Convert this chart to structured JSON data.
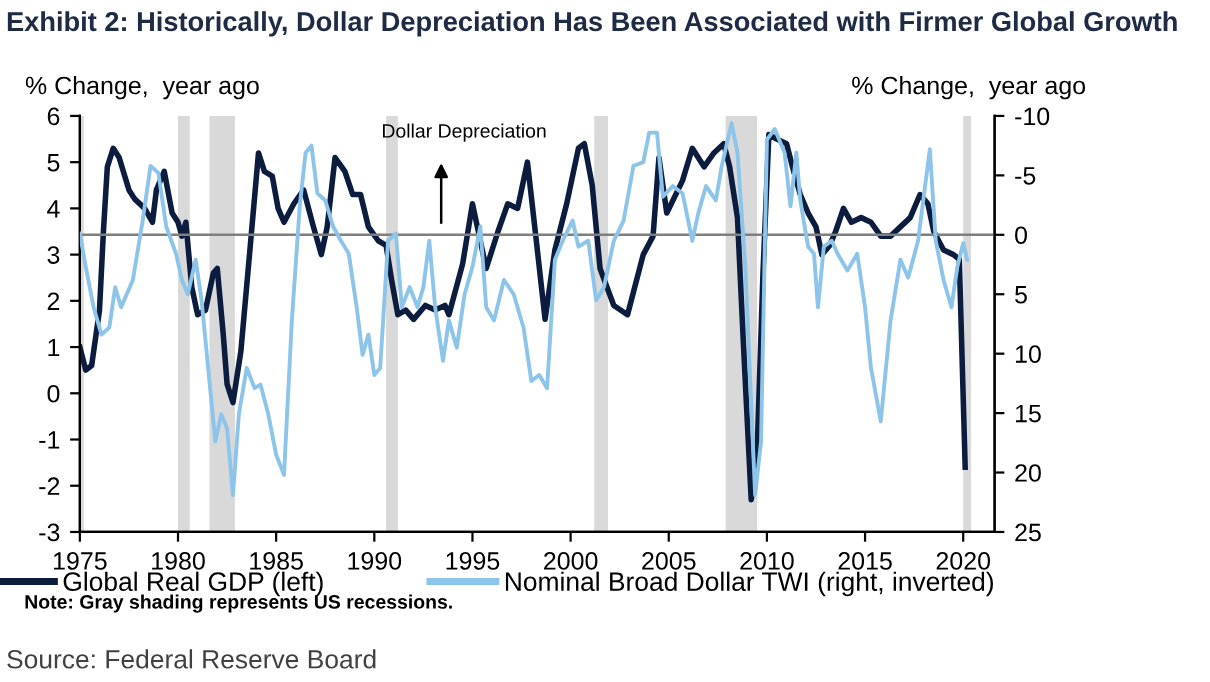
{
  "chart_data": {
    "type": "line",
    "title": "Exhibit 2: Historically, Dollar Depreciation Has Been Associated with Firmer Global Growth",
    "ylabel": "% Change,  year ago",
    "y2label": "% Change,  year ago",
    "xlim": [
      1975,
      2021.6
    ],
    "xticks": [
      1975,
      1980,
      1985,
      1990,
      1995,
      2000,
      2005,
      2010,
      2015,
      2020
    ],
    "ylim": [
      -3,
      6
    ],
    "yticks": [
      -3,
      -2,
      -1,
      0,
      1,
      2,
      3,
      4,
      5,
      6
    ],
    "y2lim": [
      25,
      -10
    ],
    "y2ticks": [
      -10,
      -5,
      0,
      5,
      10,
      15,
      20,
      25
    ],
    "grid": false,
    "legend": "bottom",
    "line_style": "solid",
    "marker": "none",
    "series": [
      {
        "name": "Global Real GDP (left)",
        "color": "#0b1c3f",
        "axis": "y",
        "x": [
          1975.0,
          1975.3,
          1975.6,
          1976.0,
          1976.2,
          1976.4,
          1976.7,
          1977.0,
          1977.5,
          1977.8,
          1978.3,
          1978.7,
          1978.9,
          1979.3,
          1979.7,
          1980.0,
          1980.2,
          1980.4,
          1980.7,
          1981.0,
          1981.4,
          1981.8,
          1982.0,
          1982.3,
          1982.5,
          1982.8,
          1983.2,
          1983.6,
          1984.1,
          1984.4,
          1984.8,
          1985.1,
          1985.4,
          1985.9,
          1986.4,
          1986.9,
          1987.3,
          1987.6,
          1988.0,
          1988.5,
          1988.9,
          1989.3,
          1989.7,
          1990.2,
          1990.6,
          1990.9,
          1991.2,
          1991.6,
          1992.0,
          1992.6,
          1993.1,
          1993.6,
          1993.8,
          1994.5,
          1995.0,
          1995.3,
          1995.7,
          1996.3,
          1996.8,
          1997.3,
          1997.8,
          1998.2,
          1998.7,
          1999.2,
          1999.8,
          2000.4,
          2000.7,
          2001.1,
          2001.5,
          2002.2,
          2002.9,
          2003.7,
          2004.2,
          2004.5,
          2004.9,
          2005.7,
          2006.2,
          2006.8,
          2007.3,
          2007.8,
          2008.1,
          2008.5,
          2008.8,
          2009.2,
          2009.5,
          2009.8,
          2010.1,
          2010.5,
          2011.0,
          2011.3,
          2011.7,
          2012.1,
          2012.5,
          2012.8,
          2013.2,
          2013.5,
          2013.9,
          2014.3,
          2014.8,
          2015.3,
          2015.8,
          2016.3,
          2016.8,
          2017.3,
          2017.8,
          2018.2,
          2018.5,
          2019.0,
          2019.5,
          2019.8,
          2020.1
        ],
        "values": [
          1.0,
          0.5,
          0.6,
          1.8,
          3.5,
          4.9,
          5.3,
          5.1,
          4.4,
          4.2,
          4.0,
          3.7,
          4.4,
          4.8,
          3.9,
          3.7,
          3.4,
          3.7,
          2.3,
          1.7,
          1.8,
          2.6,
          2.7,
          1.3,
          0.2,
          -0.2,
          0.9,
          2.8,
          5.2,
          4.8,
          4.7,
          4.0,
          3.7,
          4.1,
          4.4,
          3.6,
          3.0,
          3.6,
          5.1,
          4.8,
          4.3,
          4.3,
          3.6,
          3.3,
          3.2,
          2.4,
          1.7,
          1.8,
          1.6,
          1.9,
          1.8,
          1.9,
          1.7,
          2.8,
          4.1,
          3.5,
          2.7,
          3.5,
          4.1,
          4.0,
          5.0,
          3.5,
          1.6,
          3.1,
          4.1,
          5.3,
          5.4,
          4.5,
          2.7,
          1.9,
          1.7,
          3.0,
          3.4,
          5.1,
          3.9,
          4.6,
          5.3,
          4.9,
          5.2,
          5.4,
          4.9,
          3.8,
          1.1,
          -2.3,
          -1.3,
          2.6,
          5.6,
          5.5,
          5.4,
          4.9,
          4.3,
          3.9,
          3.6,
          3.0,
          3.2,
          3.5,
          4.0,
          3.7,
          3.8,
          3.7,
          3.4,
          3.4,
          3.6,
          3.8,
          4.3,
          4.1,
          3.5,
          3.1,
          3.0,
          2.9,
          -1.6
        ]
      },
      {
        "name": "Nominal Broad Dollar TWI (right, inverted)",
        "color": "#8cc4ea",
        "axis": "y2",
        "x": [
          1975.0,
          1975.3,
          1975.7,
          1976.1,
          1976.5,
          1976.8,
          1977.1,
          1977.7,
          1978.2,
          1978.6,
          1979.0,
          1979.4,
          1979.9,
          1980.2,
          1980.5,
          1980.9,
          1981.2,
          1981.9,
          1982.2,
          1982.5,
          1982.8,
          1983.1,
          1983.5,
          1983.9,
          1984.2,
          1984.6,
          1985.0,
          1985.4,
          1985.8,
          1986.2,
          1986.5,
          1986.8,
          1987.1,
          1987.5,
          1987.9,
          1988.3,
          1988.7,
          1989.1,
          1989.4,
          1989.7,
          1990.0,
          1990.3,
          1990.7,
          1991.1,
          1991.4,
          1991.8,
          1992.2,
          1992.5,
          1992.8,
          1993.1,
          1993.5,
          1993.8,
          1994.2,
          1994.6,
          1995.0,
          1995.4,
          1995.7,
          1996.1,
          1996.6,
          1997.1,
          1997.6,
          1998.0,
          1998.4,
          1998.8,
          1999.2,
          1999.6,
          2000.1,
          2000.4,
          2000.9,
          2001.3,
          2001.7,
          2002.2,
          2002.7,
          2003.2,
          2003.7,
          2004.0,
          2004.4,
          2004.7,
          2005.2,
          2005.7,
          2006.2,
          2006.5,
          2006.9,
          2007.4,
          2007.7,
          2008.2,
          2008.5,
          2008.9,
          2009.4,
          2009.7,
          2010.0,
          2010.4,
          2010.9,
          2011.2,
          2011.5,
          2011.7,
          2012.1,
          2012.4,
          2012.6,
          2012.9,
          2013.3,
          2013.6,
          2014.1,
          2014.6,
          2015.0,
          2015.3,
          2015.8,
          2016.3,
          2016.8,
          2017.2,
          2017.7,
          2018.3,
          2018.6,
          2019.0,
          2019.4,
          2019.7,
          2020.0,
          2020.2
        ],
        "values": [
          -0.1,
          2.7,
          6.1,
          8.4,
          7.8,
          4.4,
          6.1,
          3.8,
          -1.2,
          -5.8,
          -5.2,
          -0.7,
          1.6,
          3.8,
          5.0,
          2.1,
          5.5,
          17.4,
          15.1,
          16.3,
          21.9,
          15.1,
          11.2,
          12.9,
          12.6,
          15.1,
          18.5,
          20.2,
          7.2,
          -2.4,
          -6.9,
          -7.5,
          -3.5,
          -2.9,
          -0.7,
          0.5,
          1.6,
          6.1,
          10.1,
          8.4,
          11.8,
          11.2,
          0.5,
          -0.1,
          6.1,
          4.4,
          6.1,
          4.4,
          0.5,
          6.1,
          10.6,
          7.2,
          9.5,
          5.0,
          2.7,
          -0.7,
          6.1,
          7.2,
          3.8,
          5.0,
          7.8,
          12.3,
          11.8,
          12.9,
          2.1,
          0.5,
          -1.2,
          1.0,
          0.5,
          5.5,
          4.4,
          0.5,
          -1.2,
          -5.8,
          -6.1,
          -8.6,
          -8.6,
          -3.2,
          -4.1,
          -3.5,
          0.5,
          -1.8,
          -4.1,
          -2.9,
          -5.8,
          -9.4,
          -6.9,
          2.7,
          21.9,
          17.4,
          -8.0,
          -8.9,
          -6.9,
          -2.4,
          -6.9,
          -2.9,
          1.0,
          1.6,
          6.1,
          1.0,
          0.5,
          1.6,
          3.0,
          1.6,
          6.1,
          11.2,
          15.7,
          7.2,
          2.1,
          3.6,
          0.5,
          -7.2,
          0.5,
          3.8,
          6.1,
          2.7,
          0.7,
          2.1
        ]
      }
    ],
    "ref_lines": [
      {
        "axis": "y2",
        "value": 0,
        "color": "#7f7f7f"
      }
    ],
    "bands": [
      {
        "axis": "x",
        "from": 1975.0,
        "to": 1975.2,
        "color": "#d9d9d9"
      },
      {
        "axis": "x",
        "from": 1980.0,
        "to": 1980.6,
        "color": "#d9d9d9"
      },
      {
        "axis": "x",
        "from": 1981.6,
        "to": 1982.9,
        "color": "#d9d9d9"
      },
      {
        "axis": "x",
        "from": 1990.6,
        "to": 1991.2,
        "color": "#d9d9d9"
      },
      {
        "axis": "x",
        "from": 2001.2,
        "to": 2001.9,
        "color": "#d9d9d9"
      },
      {
        "axis": "x",
        "from": 2007.9,
        "to": 2009.5,
        "color": "#d9d9d9"
      },
      {
        "axis": "x",
        "from": 2020.0,
        "to": 2020.4,
        "color": "#d9d9d9"
      }
    ],
    "annotations": [
      "Dollar Depreciation",
      "Note: Gray shading represents US recessions.",
      "Source: Federal Reserve Board"
    ]
  }
}
